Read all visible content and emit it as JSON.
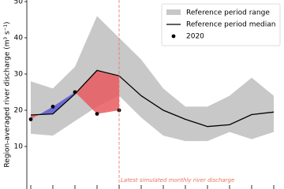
{
  "chart_data": {
    "type": "line",
    "y_label": "Region-averaged river discharge (m³ s⁻¹)",
    "annotation": "Latest simulated monthly river discharge",
    "annotation_color": "#e8735a",
    "categories": [
      null,
      null,
      null,
      null,
      null,
      null,
      null,
      null,
      null,
      null,
      null,
      null
    ],
    "ylim": [
      0,
      50
    ],
    "yticks": [
      10,
      20,
      30,
      40,
      50
    ],
    "legend": "upper right",
    "series": [
      {
        "name": "Reference period range",
        "color": "#c8c8c8",
        "lower": [
          13.5,
          13,
          17,
          21,
          24,
          18,
          13,
          11.5,
          11.5,
          14,
          12,
          14
        ],
        "upper": [
          28,
          26,
          32,
          46,
          40,
          34,
          26,
          21,
          21,
          24,
          29,
          24
        ]
      },
      {
        "name": "Reference period median",
        "color": "#000000",
        "values": [
          18.7,
          19,
          24.5,
          31,
          29.5,
          24,
          20,
          17.5,
          15.5,
          16,
          18.8,
          19.5
        ]
      },
      {
        "name": "2020",
        "color": "#000000",
        "fill_above": "#5b5bd6",
        "fill_below": "#e85a60",
        "values": [
          17.5,
          21,
          25,
          19,
          20,
          null,
          null,
          null,
          null,
          null,
          null,
          null
        ]
      }
    ]
  }
}
